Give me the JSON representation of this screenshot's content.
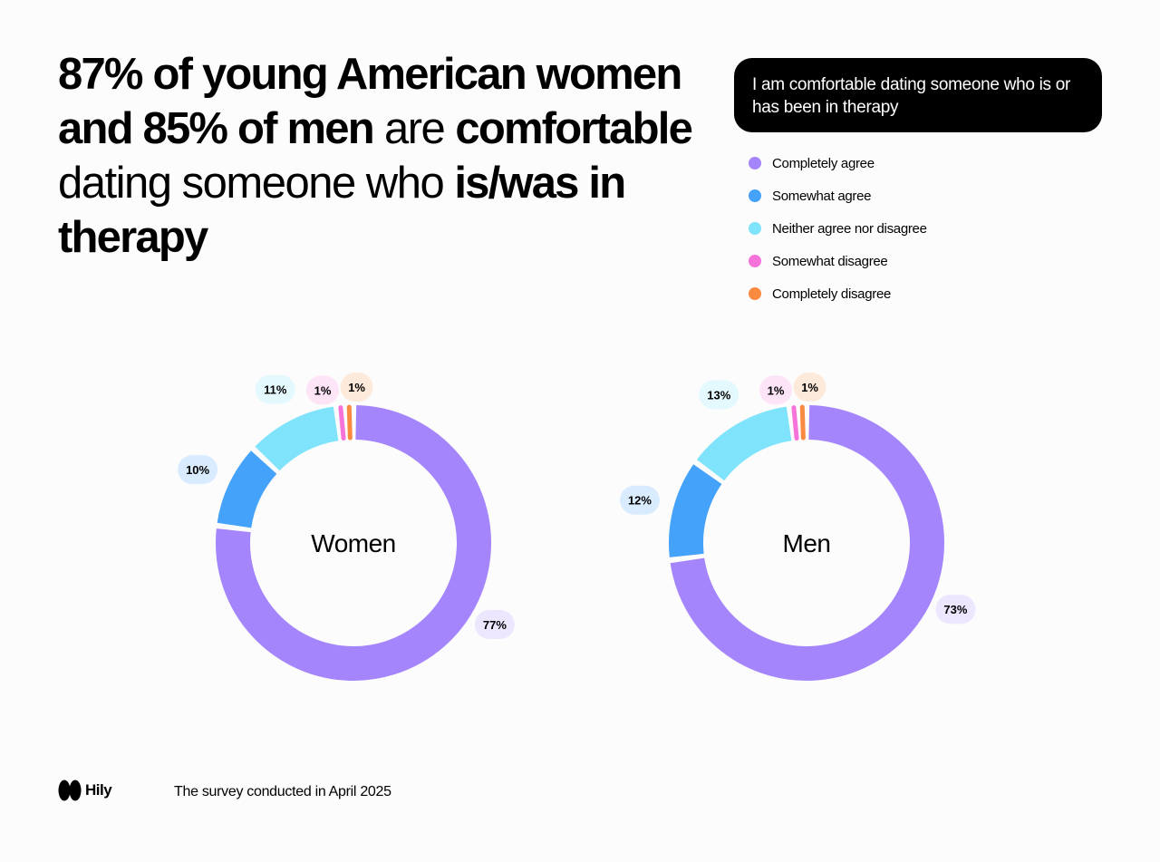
{
  "headline": {
    "part1_bold": "87% of young American women and 85% of men",
    "part2": " are ",
    "part3_bold": "comfortable",
    "part4": " dating someone who ",
    "part5_bold": "is/was in therapy"
  },
  "question": "I am comfortable dating someone who is or has been in therapy",
  "legend": [
    {
      "label": "Completely agree",
      "color": "#a585fb"
    },
    {
      "label": "Somewhat agree",
      "color": "#45a2fb"
    },
    {
      "label": "Neither agree nor disagree",
      "color": "#7fe3fc"
    },
    {
      "label": "Somewhat disagree",
      "color": "#f674da"
    },
    {
      "label": "Completely disagree",
      "color": "#fa8a40"
    }
  ],
  "chart_data": [
    {
      "type": "pie",
      "title": "Women",
      "categories": [
        "Completely agree",
        "Somewhat agree",
        "Neither agree nor disagree",
        "Somewhat disagree",
        "Completely disagree"
      ],
      "values": [
        77,
        10,
        11,
        1,
        1
      ],
      "labels": [
        "77%",
        "10%",
        "11%",
        "1%",
        "1%"
      ]
    },
    {
      "type": "pie",
      "title": "Men",
      "categories": [
        "Completely agree",
        "Somewhat agree",
        "Neither agree nor disagree",
        "Somewhat disagree",
        "Completely disagree"
      ],
      "values": [
        73,
        12,
        13,
        1,
        1
      ],
      "labels": [
        "73%",
        "12%",
        "13%",
        "1%",
        "1%"
      ]
    }
  ],
  "label_bg": [
    "#ece6fe",
    "#d9ebfe",
    "#e4f9fe",
    "#fde4f7",
    "#feeadb"
  ],
  "brand": "Hily",
  "footnote": "The survey conducted in April 2025"
}
